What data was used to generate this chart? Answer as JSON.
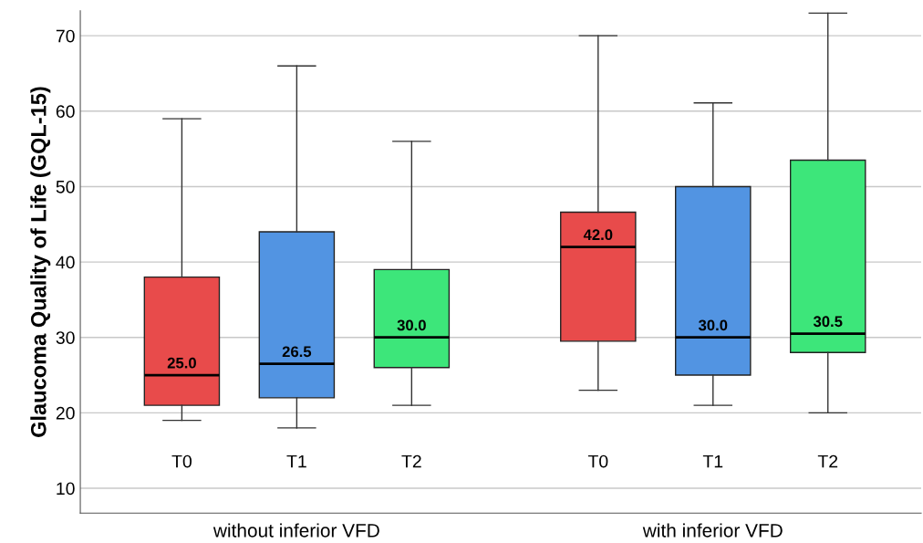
{
  "chart_data": {
    "type": "box",
    "ylabel": "Glaucoma Quality of Life (GQL-15)",
    "categories": [
      "without inferior VFD",
      "with inferior VFD"
    ],
    "ylim": [
      6.7,
      73.3
    ],
    "yticks": [
      10,
      20,
      30,
      40,
      50,
      60,
      70
    ],
    "grid": "y",
    "legend": false,
    "series": [
      {
        "name": "T0",
        "color": "#e84b4b",
        "value_labels": [
          "25.0",
          "42.0"
        ],
        "boxes": [
          {
            "low": 19,
            "q1": 21,
            "median": 25,
            "q3": 38,
            "high": 59
          },
          {
            "low": 23,
            "q1": 29.5,
            "median": 42,
            "q3": 46.6,
            "high": 70
          }
        ]
      },
      {
        "name": "T1",
        "color": "#5294e2",
        "value_labels": [
          "26.5",
          "30.0"
        ],
        "boxes": [
          {
            "low": 18,
            "q1": 22,
            "median": 26.5,
            "q3": 44,
            "high": 66
          },
          {
            "low": 21,
            "q1": 25,
            "median": 30,
            "q3": 50,
            "high": 61.1
          }
        ]
      },
      {
        "name": "T2",
        "color": "#3de67a",
        "value_labels": [
          "30.0",
          "30.5"
        ],
        "boxes": [
          {
            "low": 21,
            "q1": 26,
            "median": 30,
            "q3": 39,
            "high": 56
          },
          {
            "low": 20,
            "q1": 28,
            "median": 30.5,
            "q3": 53.5,
            "high": 73
          }
        ]
      }
    ]
  }
}
